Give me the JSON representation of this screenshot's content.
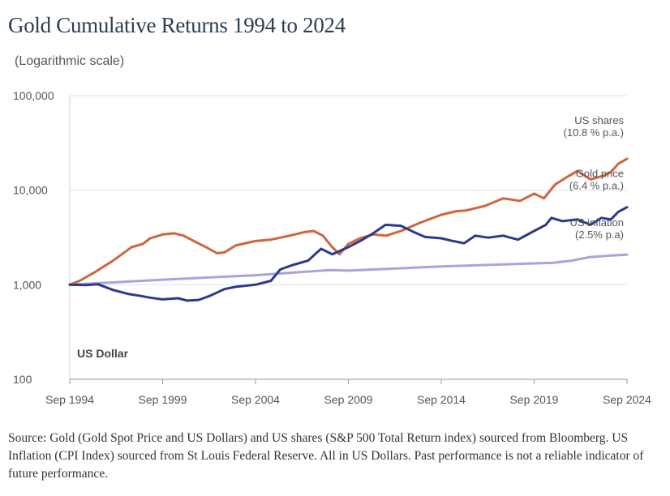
{
  "header": {
    "title": "Gold Cumulative Returns 1994 to 2024",
    "scale_note": "(Logarithmic scale)"
  },
  "footer": {
    "source": "Source: Gold (Gold Spot Price and US Dollars) and US shares (S&P 500 Total Return index) sourced from Bloomberg. US Inflation (CPI Index) sourced from St Louis Federal Reserve. All in US Dollars. Past performance is not a reliable indicator of future performance."
  },
  "chart_data": {
    "type": "line",
    "yscale": "log",
    "ylim": [
      100,
      100000
    ],
    "xlim": [
      1994.67,
      2024.67
    ],
    "grid": {
      "horizontal": true,
      "vertical": false
    },
    "currency_label": "US Dollar",
    "x_ticks": [
      {
        "x": 1994.67,
        "label": "Sep 1994"
      },
      {
        "x": 1999.67,
        "label": "Sep 1999"
      },
      {
        "x": 2004.67,
        "label": "Sep 2004"
      },
      {
        "x": 2009.67,
        "label": "Sep 2009"
      },
      {
        "x": 2014.67,
        "label": "Sep 2014"
      },
      {
        "x": 2019.67,
        "label": "Sep 2019"
      },
      {
        "x": 2024.67,
        "label": "Sep 2024"
      }
    ],
    "y_ticks": [
      {
        "y": 100,
        "label": "100"
      },
      {
        "y": 1000,
        "label": "1,000"
      },
      {
        "y": 10000,
        "label": "10,000"
      },
      {
        "y": 100000,
        "label": "100,000"
      }
    ],
    "series": [
      {
        "name": "US shares",
        "label_lines": [
          "US shares",
          "(10.8 % p.a.)"
        ],
        "color": "#d0653f",
        "points": [
          [
            1994.67,
            1000
          ],
          [
            1995.2,
            1100
          ],
          [
            1996.0,
            1350
          ],
          [
            1997.0,
            1800
          ],
          [
            1998.0,
            2500
          ],
          [
            1998.6,
            2700
          ],
          [
            1999.0,
            3100
          ],
          [
            1999.67,
            3400
          ],
          [
            2000.3,
            3500
          ],
          [
            2000.8,
            3300
          ],
          [
            2001.5,
            2800
          ],
          [
            2002.0,
            2500
          ],
          [
            2002.6,
            2150
          ],
          [
            2003.0,
            2200
          ],
          [
            2003.6,
            2600
          ],
          [
            2004.67,
            2900
          ],
          [
            2005.5,
            3000
          ],
          [
            2006.5,
            3300
          ],
          [
            2007.3,
            3600
          ],
          [
            2007.8,
            3700
          ],
          [
            2008.3,
            3300
          ],
          [
            2008.8,
            2500
          ],
          [
            2009.2,
            2100
          ],
          [
            2009.67,
            2700
          ],
          [
            2010.3,
            3100
          ],
          [
            2011.0,
            3400
          ],
          [
            2011.7,
            3300
          ],
          [
            2012.5,
            3700
          ],
          [
            2013.5,
            4500
          ],
          [
            2014.67,
            5500
          ],
          [
            2015.5,
            6000
          ],
          [
            2016.0,
            6100
          ],
          [
            2017.0,
            6800
          ],
          [
            2018.0,
            8200
          ],
          [
            2018.9,
            7700
          ],
          [
            2019.67,
            9200
          ],
          [
            2020.2,
            8200
          ],
          [
            2020.8,
            11500
          ],
          [
            2021.5,
            14000
          ],
          [
            2022.0,
            16000
          ],
          [
            2022.7,
            13000
          ],
          [
            2023.3,
            14000
          ],
          [
            2023.8,
            15500
          ],
          [
            2024.2,
            19000
          ],
          [
            2024.67,
            21500
          ]
        ]
      },
      {
        "name": "Gold price",
        "label_lines": [
          "Gold price",
          "(6.4 % p.a.)"
        ],
        "color": "#2d3a8c",
        "points": [
          [
            1994.67,
            1000
          ],
          [
            1995.5,
            990
          ],
          [
            1996.2,
            1010
          ],
          [
            1997.0,
            880
          ],
          [
            1997.8,
            800
          ],
          [
            1998.5,
            760
          ],
          [
            1999.0,
            730
          ],
          [
            1999.67,
            700
          ],
          [
            2000.5,
            720
          ],
          [
            2001.0,
            680
          ],
          [
            2001.6,
            690
          ],
          [
            2002.2,
            760
          ],
          [
            2003.0,
            900
          ],
          [
            2003.6,
            950
          ],
          [
            2004.67,
            1000
          ],
          [
            2005.5,
            1100
          ],
          [
            2006.0,
            1450
          ],
          [
            2006.6,
            1600
          ],
          [
            2007.5,
            1800
          ],
          [
            2008.2,
            2400
          ],
          [
            2008.8,
            2100
          ],
          [
            2009.67,
            2500
          ],
          [
            2010.3,
            2900
          ],
          [
            2011.0,
            3500
          ],
          [
            2011.67,
            4300
          ],
          [
            2012.5,
            4200
          ],
          [
            2013.2,
            3600
          ],
          [
            2013.8,
            3200
          ],
          [
            2014.67,
            3100
          ],
          [
            2015.3,
            2900
          ],
          [
            2015.9,
            2750
          ],
          [
            2016.5,
            3300
          ],
          [
            2017.2,
            3150
          ],
          [
            2018.0,
            3300
          ],
          [
            2018.8,
            3000
          ],
          [
            2019.67,
            3700
          ],
          [
            2020.3,
            4300
          ],
          [
            2020.6,
            5100
          ],
          [
            2021.2,
            4700
          ],
          [
            2022.0,
            4900
          ],
          [
            2022.7,
            4300
          ],
          [
            2023.3,
            5100
          ],
          [
            2023.8,
            4900
          ],
          [
            2024.2,
            5900
          ],
          [
            2024.67,
            6600
          ]
        ]
      },
      {
        "name": "US inflation",
        "label_lines": [
          "US inflation",
          "(2.5% p.a)"
        ],
        "color": "#a9a4db",
        "points": [
          [
            1994.67,
            1000
          ],
          [
            1999.67,
            1130
          ],
          [
            2004.67,
            1260
          ],
          [
            2008.67,
            1430
          ],
          [
            2009.67,
            1410
          ],
          [
            2014.67,
            1560
          ],
          [
            2019.67,
            1680
          ],
          [
            2020.67,
            1700
          ],
          [
            2021.67,
            1800
          ],
          [
            2022.67,
            1960
          ],
          [
            2023.67,
            2030
          ],
          [
            2024.67,
            2080
          ]
        ]
      }
    ]
  }
}
